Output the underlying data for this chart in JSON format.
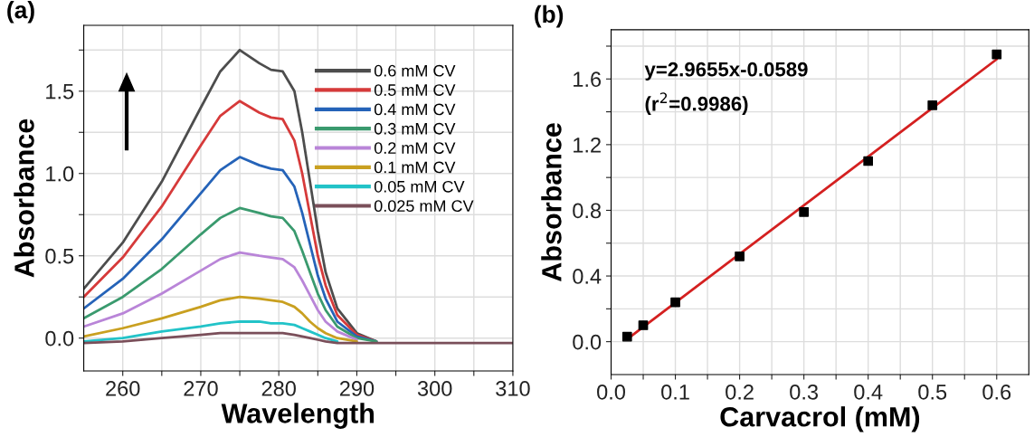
{
  "chart_data": [
    {
      "type": "line",
      "title": "(a)",
      "xlabel": "Wavelength",
      "ylabel": "Absorbance",
      "x": [
        255,
        260,
        265,
        270,
        272.5,
        275,
        277.5,
        279,
        280.5,
        282,
        283,
        284,
        285,
        286,
        287.5,
        290,
        292.5,
        295,
        300,
        310
      ],
      "series": [
        {
          "name": "0.6 mM CV",
          "color": "#4d4d4d",
          "values": [
            0.3,
            0.58,
            0.95,
            1.4,
            1.62,
            1.75,
            1.67,
            1.63,
            1.62,
            1.5,
            1.25,
            0.95,
            0.65,
            0.4,
            0.18,
            0.03,
            -0.02,
            null,
            null,
            null
          ]
        },
        {
          "name": "0.5 mM CV",
          "color": "#d63a3a",
          "values": [
            0.25,
            0.49,
            0.8,
            1.17,
            1.35,
            1.44,
            1.37,
            1.34,
            1.33,
            1.2,
            1.0,
            0.75,
            0.5,
            0.32,
            0.14,
            0.02,
            -0.02,
            null,
            null,
            null
          ]
        },
        {
          "name": "0.4 mM CV",
          "color": "#2563b8",
          "values": [
            0.18,
            0.36,
            0.6,
            0.88,
            1.02,
            1.1,
            1.05,
            1.03,
            1.02,
            0.92,
            0.76,
            0.57,
            0.38,
            0.24,
            0.1,
            0.01,
            -0.02,
            null,
            null,
            null
          ]
        },
        {
          "name": "0.3 mM CV",
          "color": "#3a9a6e",
          "values": [
            0.12,
            0.25,
            0.42,
            0.63,
            0.73,
            0.79,
            0.76,
            0.74,
            0.73,
            0.65,
            0.53,
            0.4,
            0.27,
            0.17,
            0.07,
            0.0,
            -0.02,
            null,
            null,
            null
          ]
        },
        {
          "name": "0.2 mM CV",
          "color": "#b985d8",
          "values": [
            0.07,
            0.15,
            0.27,
            0.41,
            0.48,
            0.52,
            0.5,
            0.49,
            0.48,
            0.43,
            0.35,
            0.26,
            0.17,
            0.1,
            0.04,
            -0.01,
            null,
            null,
            null,
            null
          ]
        },
        {
          "name": "0.1 mM CV",
          "color": "#c9a020",
          "values": [
            0.01,
            0.06,
            0.12,
            0.19,
            0.23,
            0.25,
            0.24,
            0.23,
            0.22,
            0.19,
            0.15,
            0.1,
            0.06,
            0.03,
            0.0,
            -0.02,
            null,
            null,
            null,
            null
          ]
        },
        {
          "name": "0.05 mM CV",
          "color": "#22c3c8",
          "values": [
            -0.02,
            0.0,
            0.04,
            0.07,
            0.09,
            0.1,
            0.1,
            0.09,
            0.09,
            0.08,
            0.06,
            0.04,
            0.02,
            0.0,
            -0.02,
            null,
            null,
            null,
            null,
            null
          ]
        },
        {
          "name": "0.025 mM CV",
          "color": "#7a4f5a",
          "values": [
            -0.03,
            -0.02,
            0.0,
            0.02,
            0.03,
            0.03,
            0.03,
            0.03,
            0.03,
            0.02,
            0.01,
            0.0,
            -0.01,
            -0.02,
            -0.03,
            -0.03,
            -0.03,
            -0.03,
            -0.03,
            -0.03
          ]
        }
      ],
      "xlim": [
        255,
        310
      ],
      "xticks": [
        260,
        {
          "value": 265,
          "label": null
        },
        270,
        {
          "value": 275,
          "label": null
        },
        280,
        {
          "value": 285,
          "label": null
        },
        290,
        {
          "value": 295,
          "label": null
        },
        300,
        {
          "value": 305,
          "label": null
        },
        310
      ],
      "ylim": [
        -0.2,
        1.9
      ],
      "yticks": [
        {
          "value": 0,
          "label": "0.0"
        },
        {
          "value": 0.25,
          "label": null
        },
        0.5,
        {
          "value": 0.75,
          "label": null
        },
        {
          "value": 1,
          "label": "1.0"
        },
        {
          "value": 1.25,
          "label": null
        },
        1.5,
        {
          "value": 1.75,
          "label": null
        }
      ],
      "grid": true,
      "legend": "top right",
      "line_style": "solid",
      "marker": "none"
    },
    {
      "type": "scatter",
      "title": "(b)",
      "xlabel": "Carvacrol (mM)",
      "ylabel": "Absorbance",
      "annotations": [
        "y=2.9655x-0.0589",
        "(r$^{2}$=0.9986)"
      ],
      "series": [
        {
          "type": "scatter",
          "color": "#000000",
          "marker": "square",
          "x": [
            0.025,
            0.05,
            0.1,
            0.2,
            0.3,
            0.4,
            0.5,
            0.6
          ],
          "values": [
            0.03,
            0.1,
            0.24,
            0.52,
            0.79,
            1.1,
            1.44,
            1.75
          ]
        },
        {
          "type": "line",
          "color": "#d42020",
          "x": [
            0.025,
            0.6
          ],
          "values": [
            0.015,
            1.72
          ]
        }
      ],
      "xlim": [
        0,
        0.65
      ],
      "xticks": [
        {
          "value": 0,
          "label": "0.0"
        },
        {
          "value": 0.05,
          "label": null
        },
        0.1,
        {
          "value": 0.15,
          "label": null
        },
        0.2,
        {
          "value": 0.25,
          "label": null
        },
        0.3,
        {
          "value": 0.35,
          "label": null
        },
        0.4,
        {
          "value": 0.45,
          "label": null
        },
        0.5,
        {
          "value": 0.55,
          "label": null
        },
        0.6
      ],
      "ylim": [
        -0.2,
        1.9
      ],
      "yticks": [
        {
          "value": 0,
          "label": "0.0"
        },
        {
          "value": 0.2,
          "label": null
        },
        0.4,
        {
          "value": 0.6,
          "label": null
        },
        0.8,
        {
          "value": 1.0,
          "label": null
        },
        1.2,
        {
          "value": 1.4,
          "label": null
        },
        1.6,
        {
          "value": 1.8,
          "label": null
        }
      ],
      "grid": true
    }
  ]
}
